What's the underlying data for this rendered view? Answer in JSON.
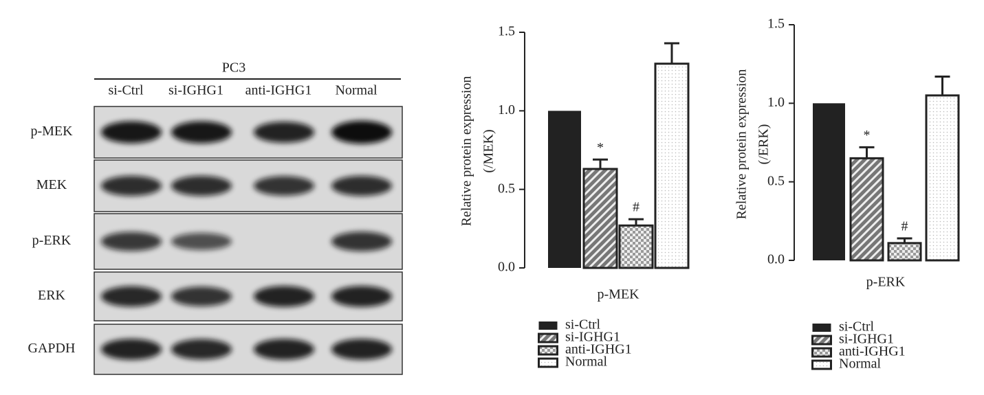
{
  "western_blot": {
    "cell_line": "PC3",
    "lanes": [
      "si-Ctrl",
      "si-IGHG1",
      "anti-IGHG1",
      "Normal"
    ],
    "rows": [
      "p-MEK",
      "MEK",
      "p-ERK",
      "ERK",
      "GAPDH"
    ]
  },
  "chart_data": [
    {
      "type": "bar",
      "y_label": [
        "Relative protein expression",
        "(/MEK)"
      ],
      "categories": [
        "p-MEK"
      ],
      "ylim": [
        0,
        1.5
      ],
      "yticks": [
        {
          "value": 0,
          "label": "0.0"
        },
        0.5,
        {
          "value": 1,
          "label": "1.0"
        },
        1.5
      ],
      "series": [
        {
          "name": "si-Ctrl",
          "color": "#222222",
          "pattern": "solid",
          "values": [
            1.0
          ]
        },
        {
          "name": "si-IGHG1",
          "color": "#222222",
          "pattern": "hatch",
          "values": [
            0.63
          ],
          "errors": [
            0.06
          ],
          "annotation": "*"
        },
        {
          "name": "anti-IGHG1",
          "color": "#222222",
          "pattern": "checker",
          "values": [
            0.27
          ],
          "errors": [
            0.04
          ],
          "annotation": "#"
        },
        {
          "name": "Normal",
          "color": "#222222",
          "pattern": "dots",
          "values": [
            1.3
          ],
          "errors": [
            0.13
          ]
        }
      ]
    },
    {
      "type": "bar",
      "y_label": [
        "Relative protein expression",
        "(/ERK)"
      ],
      "categories": [
        "p-ERK"
      ],
      "ylim": [
        0,
        1.5
      ],
      "yticks": [
        {
          "value": 0,
          "label": "0.0"
        },
        0.5,
        {
          "value": 1,
          "label": "1.0"
        },
        1.5
      ],
      "series": [
        {
          "name": "si-Ctrl",
          "color": "#222222",
          "pattern": "solid",
          "values": [
            1.0
          ]
        },
        {
          "name": "si-IGHG1",
          "color": "#222222",
          "pattern": "hatch",
          "values": [
            0.65
          ],
          "errors": [
            0.07
          ],
          "annotation": "*"
        },
        {
          "name": "anti-IGHG1",
          "color": "#222222",
          "pattern": "checker",
          "values": [
            0.11
          ],
          "errors": [
            0.03
          ],
          "annotation": "#"
        },
        {
          "name": "Normal",
          "color": "#222222",
          "pattern": "dots",
          "values": [
            1.05
          ],
          "errors": [
            0.12
          ]
        }
      ]
    }
  ]
}
